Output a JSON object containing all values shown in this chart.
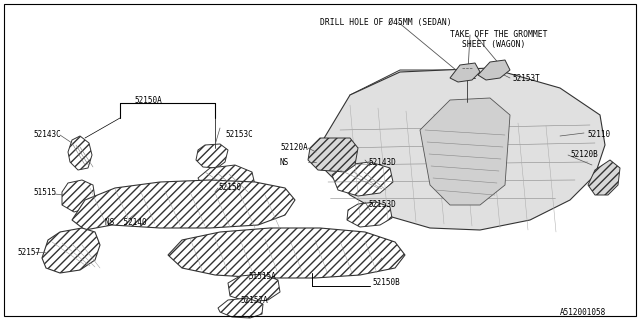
{
  "background_color": "#ffffff",
  "border_color": "#000000",
  "fig_width": 6.4,
  "fig_height": 3.2,
  "dpi": 100,
  "footnote": "A512001058",
  "label_color": "#000000",
  "line_color": "#000000",
  "ann_color": "#555555",
  "font_size": 6.0,
  "font_family": "DejaVu Sans",
  "labels": {
    "drill_hole": "DRILL HOLE OF Ø45MM (SEDAN)",
    "take_off_1": "TAKE OFF THE GROMMET",
    "take_off_2": "SHEET (WAGON)",
    "52153T": "52153T",
    "52110": "52110",
    "52120B": "52120B",
    "52120A": "52120A",
    "NS_r": "NS",
    "52150A": "52150A",
    "52153C": "52153C",
    "52143C": "52143C",
    "52150": "52150",
    "51515": "51515",
    "NS_52140": "NS  52140",
    "52157": "52157",
    "52143D": "52143D",
    "52153D": "52153D",
    "52150B": "52150B",
    "51515A": "51515A",
    "52157A": "52157A"
  }
}
